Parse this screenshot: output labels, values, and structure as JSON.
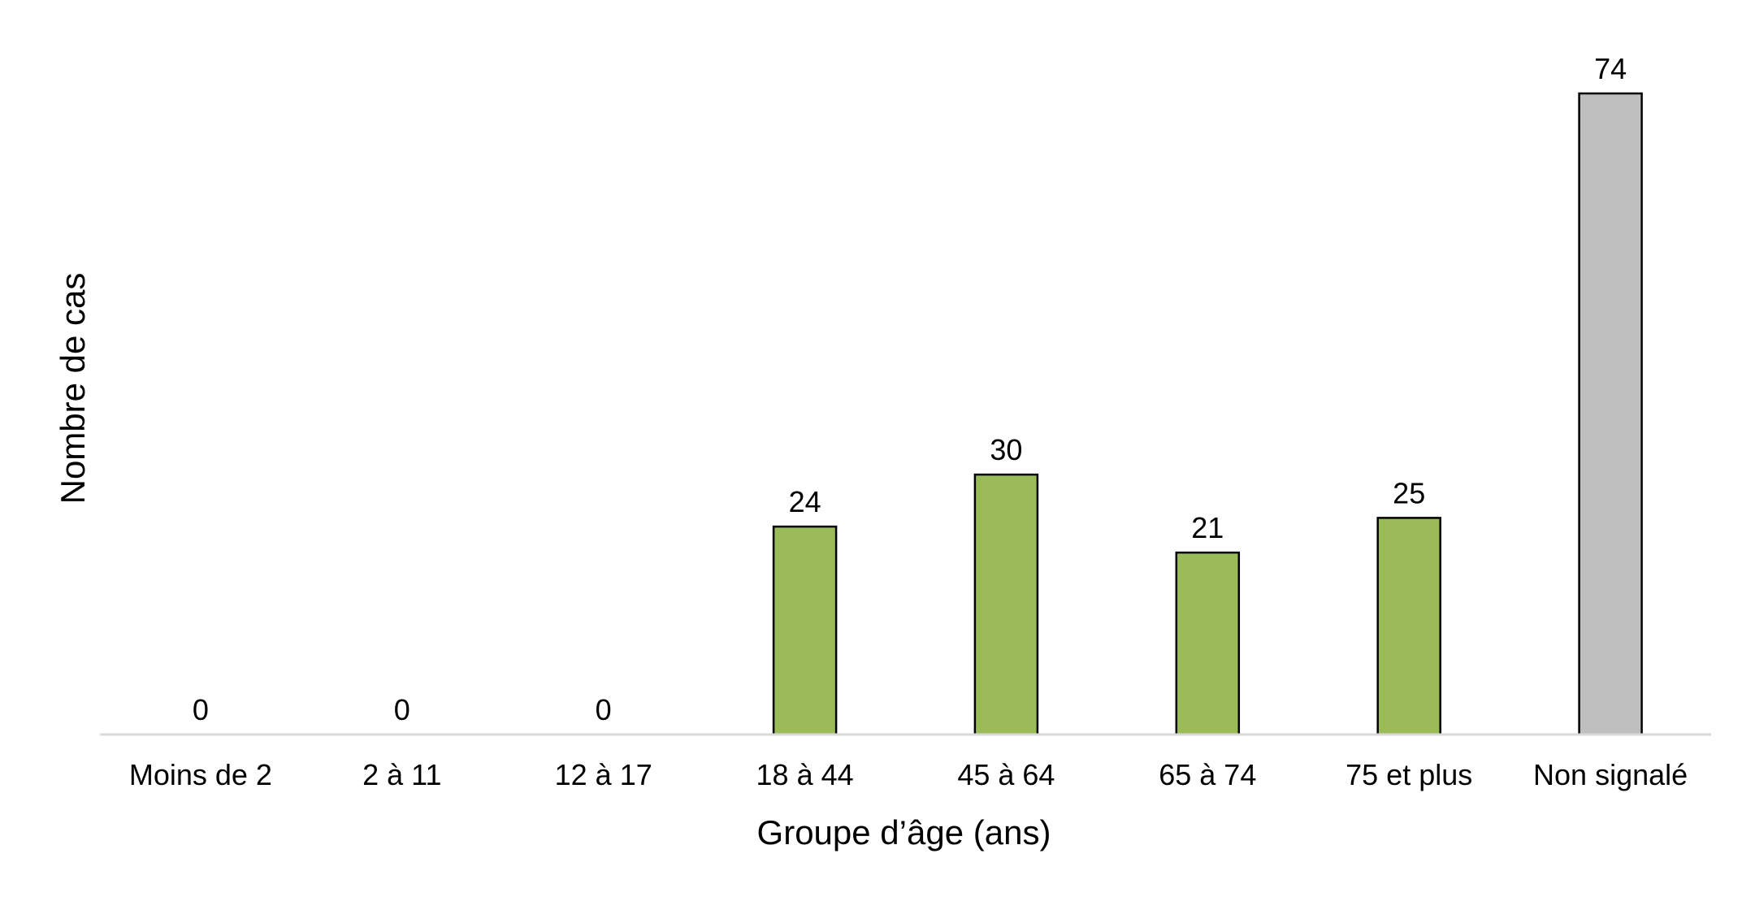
{
  "chart_data": {
    "type": "bar",
    "title": "",
    "xlabel": "Groupe d’âge (ans)",
    "ylabel": "Nombre de cas",
    "categories": [
      "Moins de 2",
      "2 à 11",
      "12 à 17",
      "18 à 44",
      "45 à 64",
      "65 à 74",
      "75 et plus",
      "Non signalé"
    ],
    "values": [
      0,
      0,
      0,
      24,
      30,
      21,
      25,
      74
    ],
    "data_labels": [
      "0",
      "0",
      "0",
      "24",
      "30",
      "21",
      "25",
      "74"
    ],
    "bar_colors": [
      "#9bbb59",
      "#9bbb59",
      "#9bbb59",
      "#9bbb59",
      "#9bbb59",
      "#9bbb59",
      "#9bbb59",
      "#bfbfbf"
    ],
    "bar_outline_color": "#000000",
    "baseline_color": "#d9d9d9",
    "ylim": [
      0,
      74
    ],
    "grid": false,
    "legend": "none",
    "y_axis_visible": false
  }
}
